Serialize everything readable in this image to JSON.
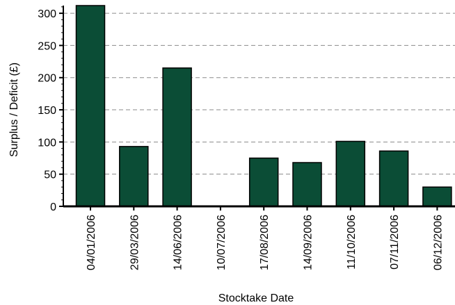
{
  "chart_data": {
    "type": "bar",
    "title": "",
    "xlabel": "Stocktake Date",
    "ylabel": "Surplus / Deficit (£)",
    "categories": [
      "04/01/2006",
      "29/03/2006",
      "14/06/2006",
      "10/07/2006",
      "17/08/2006",
      "14/09/2006",
      "11/10/2006",
      "07/11/2006",
      "06/12/2006"
    ],
    "values": [
      312,
      93,
      215,
      0,
      75,
      68,
      101,
      86,
      30
    ],
    "ylim": [
      0,
      312
    ],
    "yticks": [
      0,
      50,
      100,
      150,
      200,
      250,
      300
    ],
    "grid": true,
    "grid_style": "dashed-horizontal",
    "legend": "none",
    "bar_color": "#0b4d36",
    "bar_outline": "#000000",
    "axis_color": "#000000",
    "grid_color": "#8a8a8a"
  }
}
